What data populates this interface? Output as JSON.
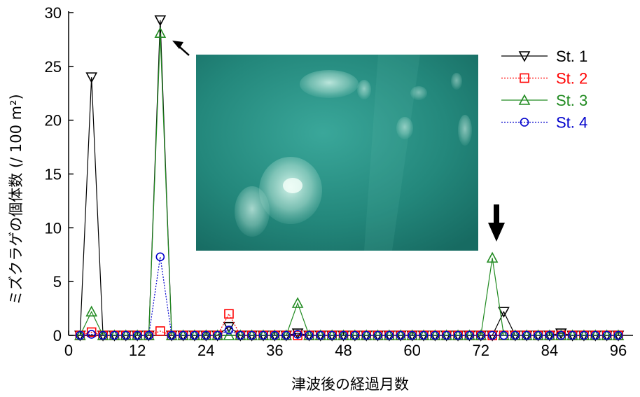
{
  "chart_data": {
    "type": "line",
    "xlabel": "津波後の経過月数",
    "ylabel": "ミズクラゲの個体数 (/ 100 m²)",
    "xlim": [
      0,
      97
    ],
    "ylim": [
      0,
      30
    ],
    "xticks": [
      0,
      12,
      24,
      36,
      48,
      60,
      72,
      84,
      96
    ],
    "yticks": [
      0,
      5,
      10,
      15,
      20,
      25,
      30
    ],
    "x": [
      2,
      4,
      6,
      8,
      10,
      12,
      14,
      16,
      18,
      20,
      22,
      24,
      26,
      28,
      30,
      32,
      34,
      36,
      38,
      40,
      42,
      44,
      46,
      48,
      50,
      52,
      54,
      56,
      58,
      60,
      62,
      64,
      66,
      68,
      70,
      72,
      74,
      76,
      78,
      80,
      82,
      84,
      86,
      88,
      90,
      92,
      94,
      96
    ],
    "series": [
      {
        "name": "St. 1",
        "color": "#000000",
        "marker": "triangle-down",
        "dash": "solid",
        "values": [
          0,
          24,
          0,
          0,
          0,
          0,
          0,
          29.3,
          0,
          0,
          0,
          0,
          0,
          0.8,
          0,
          0,
          0,
          0,
          0,
          0.2,
          0,
          0,
          0,
          0,
          0,
          0,
          0,
          0,
          0,
          0,
          0,
          0,
          0,
          0,
          0,
          0,
          0,
          2.2,
          0,
          0,
          0,
          0,
          0.2,
          0,
          0,
          0,
          0,
          0
        ]
      },
      {
        "name": "St. 2",
        "color": "#ff0000",
        "marker": "square",
        "dash": "dotted",
        "values": [
          0,
          0.3,
          0,
          0,
          0,
          0,
          0,
          0.4,
          0,
          0,
          0,
          0,
          0,
          2.0,
          0,
          0,
          0,
          0,
          0,
          0,
          0,
          0,
          0,
          0,
          0,
          0,
          0,
          0,
          0,
          0,
          0,
          0,
          0,
          0,
          0,
          0,
          0,
          0,
          0,
          0,
          0,
          0,
          0,
          0,
          0,
          0,
          0,
          0
        ]
      },
      {
        "name": "St. 3",
        "color": "#228b22",
        "marker": "triangle-up",
        "dash": "solid",
        "values": [
          0,
          2.2,
          0,
          0,
          0,
          0,
          0,
          28.1,
          0,
          0,
          0,
          0,
          0,
          0,
          0,
          0,
          0,
          0,
          0,
          3.0,
          0,
          0,
          0,
          0,
          0,
          0,
          0,
          0,
          0,
          0,
          0,
          0,
          0,
          0,
          0,
          0,
          7.2,
          0,
          0,
          0,
          0,
          0,
          0,
          0,
          0,
          0,
          0,
          0
        ]
      },
      {
        "name": "St. 4",
        "color": "#0000cc",
        "marker": "circle",
        "dash": "dotted",
        "values": [
          0,
          0.1,
          0,
          0,
          0,
          0,
          0,
          7.3,
          0,
          0,
          0,
          0,
          0,
          0.5,
          0,
          0,
          0,
          0,
          0,
          0.1,
          0,
          0,
          0,
          0,
          0,
          0,
          0,
          0,
          0,
          0,
          0,
          0,
          0,
          0,
          0,
          0,
          0,
          0,
          0,
          0,
          0,
          0,
          0,
          0,
          0,
          0,
          0,
          0
        ]
      }
    ],
    "legend_position": "top-right",
    "grid": false,
    "annotations": [
      {
        "type": "small-arrow",
        "target_x": 16,
        "target_y": 28,
        "description": "points to St. 3 peak"
      },
      {
        "type": "large-arrow",
        "target_x": 74,
        "target_y": 7.2,
        "description": "down arrow above month 74 peak"
      }
    ],
    "inset_photo": "underwater photograph of moon jellyfish (ミズクラゲ)"
  }
}
